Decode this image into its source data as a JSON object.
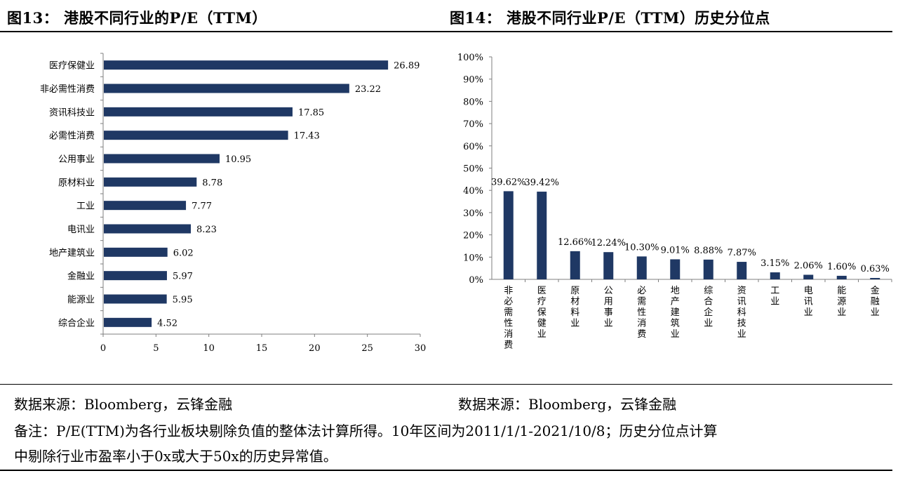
{
  "fig13": {
    "title": "图13：   港股不同行业的P/E（TTM）"
  },
  "fig14": {
    "title": "图14：   港股不同行业P/E（TTM）历史分位点"
  },
  "source_left": "数据来源：Bloomberg，云锋金融",
  "source_right": "数据来源：Bloomberg，云锋金融",
  "note_line1": "备注：P/E(TTM)为各行业板块剔除负值的整体法计算所得。10年区间为2011/1/1-2021/10/8；历史分位点计算",
  "note_line2": "中剔除行业市盈率小于0x或大于50x的历史异常值。",
  "colors": {
    "bar": "#1f3864",
    "axis": "#7f7f7f"
  },
  "chart_data": [
    {
      "type": "bar",
      "orientation": "horizontal",
      "categories": [
        "医疗保健业",
        "非必需性消费",
        "资讯科技业",
        "必需性消费",
        "公用事业",
        "原材料业",
        "工业",
        "电讯业",
        "地产建筑业",
        "金融业",
        "能源业",
        "综合企业"
      ],
      "values": [
        26.89,
        23.22,
        17.85,
        17.43,
        10.95,
        8.78,
        7.77,
        8.23,
        6.02,
        5.97,
        5.95,
        4.52
      ],
      "labels": [
        "26.89",
        "23.22",
        "17.85",
        "17.43",
        "10.95",
        "8.78",
        "7.77",
        "8.23",
        "6.02",
        "5.97",
        "5.95",
        "4.52"
      ],
      "xlim": [
        0,
        30
      ],
      "xticks": [
        "0",
        "5",
        "10",
        "15",
        "20",
        "25",
        "30"
      ],
      "grid": false
    },
    {
      "type": "bar",
      "orientation": "vertical",
      "categories": [
        "非必需性消费",
        "医疗保健业",
        "原材料业",
        "公用事业",
        "必需性消费",
        "地产建筑业",
        "综合企业",
        "资讯科技业",
        "工业",
        "电讯业",
        "能源业",
        "金融业"
      ],
      "values": [
        39.62,
        39.42,
        12.66,
        12.24,
        10.3,
        9.01,
        8.88,
        7.87,
        3.15,
        2.06,
        1.6,
        0.63
      ],
      "labels": [
        "39.62%",
        "39.42%",
        "12.66%",
        "12.24%",
        "10.30%",
        "9.01%",
        "8.88%",
        "7.87%",
        "3.15%",
        "2.06%",
        "1.60%",
        "0.63%"
      ],
      "ylim": [
        0,
        100
      ],
      "yticks": [
        "0%",
        "10%",
        "20%",
        "30%",
        "40%",
        "50%",
        "60%",
        "70%",
        "80%",
        "90%",
        "100%"
      ],
      "grid": false
    }
  ]
}
